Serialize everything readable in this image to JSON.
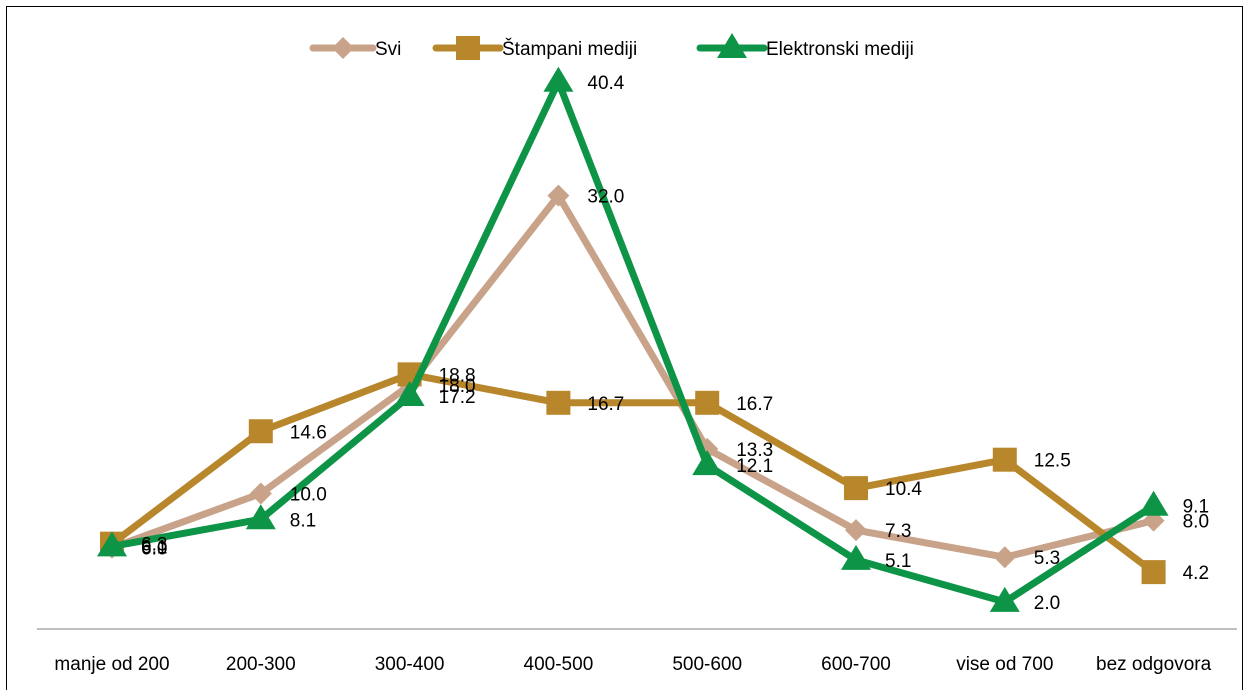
{
  "chart_data": {
    "type": "line",
    "categories": [
      "manje od 200",
      "200-300",
      "300-400",
      "400-500",
      "500-600",
      "600-700",
      "vise od 700",
      "bez odgovora"
    ],
    "series": [
      {
        "name": "Svi",
        "values": [
          6.0,
          10.0,
          18.0,
          32.0,
          13.3,
          7.3,
          5.3,
          8.0
        ],
        "labels": [
          "6.0",
          "10.0",
          "18.0",
          "32.0",
          "13.3",
          "7.3",
          "5.3",
          "8.0"
        ],
        "color": "#c8a38a",
        "marker": "diamond"
      },
      {
        "name": "Štampani mediji",
        "values": [
          6.3,
          14.6,
          18.8,
          16.7,
          16.7,
          10.4,
          12.5,
          4.2
        ],
        "labels": [
          "6.3",
          "14.6",
          "18.8",
          "16.7",
          "16.7",
          "10.4",
          "12.5",
          "4.2"
        ],
        "color": "#b8862b",
        "marker": "square"
      },
      {
        "name": "Elektronski mediji",
        "values": [
          6.1,
          8.1,
          17.2,
          40.4,
          12.1,
          5.1,
          2.0,
          9.1
        ],
        "labels": [
          "6.1",
          "8.1",
          "17.2",
          "40.4",
          "12.1",
          "5.1",
          "2.0",
          "9.1"
        ],
        "color": "#0d9447",
        "marker": "triangle"
      }
    ],
    "title": "",
    "xlabel": "",
    "ylabel": "",
    "ylim": [
      0,
      45
    ],
    "grid": false,
    "legend_position": "top"
  }
}
